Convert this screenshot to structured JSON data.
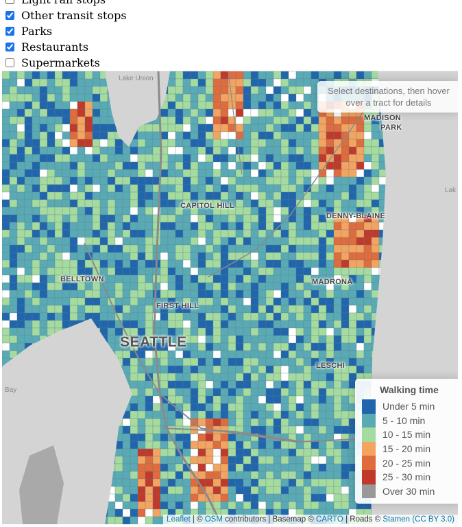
{
  "checkboxes": [
    {
      "label": "Light rail stops",
      "checked": false
    },
    {
      "label": "Other transit stops",
      "checked": true
    },
    {
      "label": "Parks",
      "checked": true
    },
    {
      "label": "Restaurants",
      "checked": true
    },
    {
      "label": "Supermarkets",
      "checked": false
    }
  ],
  "map": {
    "info_text": "Select destinations, then hover over a tract for details",
    "places": {
      "seattle": "SEATTLE",
      "capitol_hill": "CAPITOL HILL",
      "denny_blaine": "DENNY-BLAINE",
      "madrona": "MADRONA",
      "belltown": "BELLTOWN",
      "first_hill": "FIRST HILL",
      "leschi": "LESCHI",
      "madison": "MADISON",
      "park": "PARK"
    },
    "water": {
      "lake_union": "Lake Union",
      "bay": "Bay",
      "lak": "Lak"
    },
    "legend": {
      "title": "Walking time",
      "items": [
        {
          "label": "Under 5 min",
          "color": "#2166ac"
        },
        {
          "label": "5 - 10 min",
          "color": "#5aaab6"
        },
        {
          "label": "10 - 15 min",
          "color": "#a6dba0"
        },
        {
          "label": "15 - 20 min",
          "color": "#f4a461"
        },
        {
          "label": "20 - 25 min",
          "color": "#e06b3c"
        },
        {
          "label": "25 - 30 min",
          "color": "#c0392b"
        },
        {
          "label": "Over 30 min",
          "color": "#999999"
        }
      ]
    },
    "attribution": {
      "leaflet": "Leaflet",
      "sep1": " | © ",
      "osm": "OSM",
      "contrib": " contributors | Basemap © ",
      "carto": "CARTO",
      "roads": " | Roads © ",
      "stamen": "Stamen",
      "license": "(CC BY 3.0)"
    }
  }
}
